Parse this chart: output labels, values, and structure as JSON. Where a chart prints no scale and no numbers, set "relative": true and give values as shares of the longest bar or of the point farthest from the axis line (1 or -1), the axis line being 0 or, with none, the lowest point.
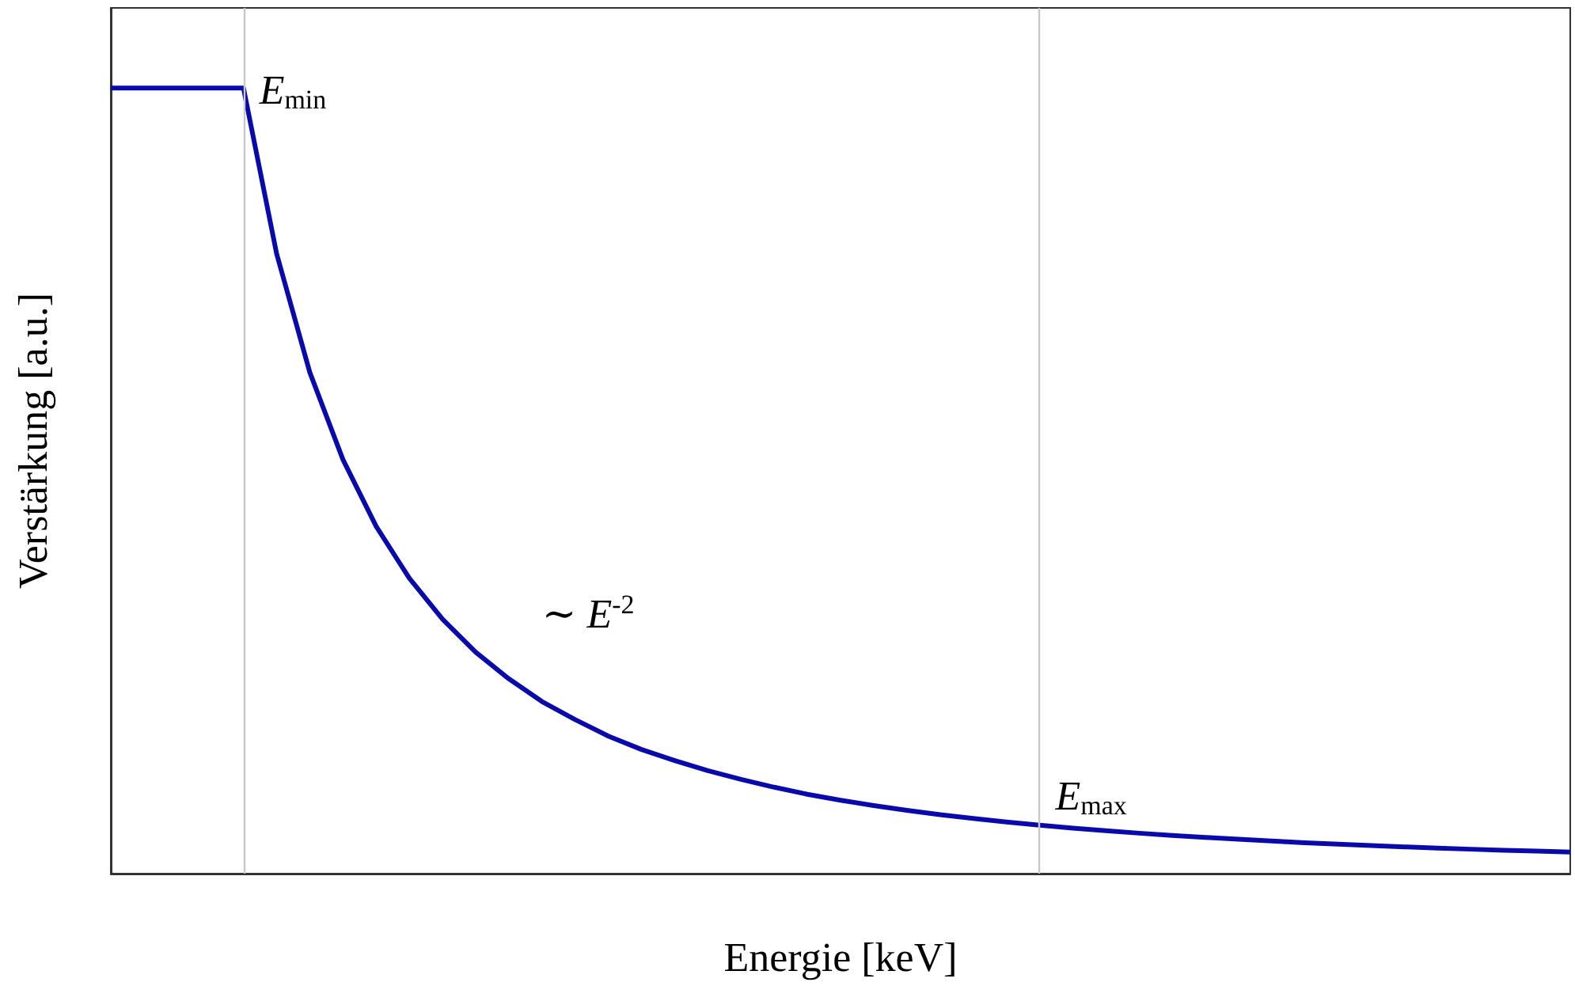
{
  "chart_data": {
    "type": "line",
    "relative": true,
    "xlabel": "Energie [keV]",
    "ylabel": "Verstärkung [a.u.]",
    "grid": false,
    "marker": "none",
    "line_style": "solid",
    "categories": [
      null,
      null,
      null,
      null,
      null,
      null,
      null,
      null,
      null,
      null,
      null,
      null,
      null,
      null,
      null,
      null,
      null,
      null,
      null,
      null,
      null,
      null,
      null,
      null,
      null,
      null,
      null,
      null,
      null,
      null,
      null,
      null,
      null,
      null,
      null,
      null,
      null,
      null,
      null,
      null,
      null,
      null,
      null,
      null,
      null
    ],
    "series": [
      {
        "color": "#0a0aaa",
        "values": [
          1,
          1,
          1,
          1,
          1,
          0.789,
          0.638,
          0.527,
          0.442,
          0.376,
          0.324,
          0.282,
          0.248,
          0.219,
          0.196,
          0.175,
          0.158,
          0.144,
          0.131,
          0.12,
          0.11,
          0.101,
          0.0935,
          0.0867,
          0.0806,
          0.0751,
          0.0702,
          0.0657,
          0.0617,
          0.058,
          0.0546,
          0.0515,
          0.0487,
          0.0461,
          0.0437,
          0.0415,
          0.0394,
          0.0375,
          0.0358,
          0.0341,
          0.0326,
          0.0311,
          0.0298,
          0.0286,
          0.0274
        ]
      }
    ],
    "annotations": [
      "E$_{min}$",
      "E$_{max}$",
      "∼ E$^{-2}$"
    ]
  }
}
